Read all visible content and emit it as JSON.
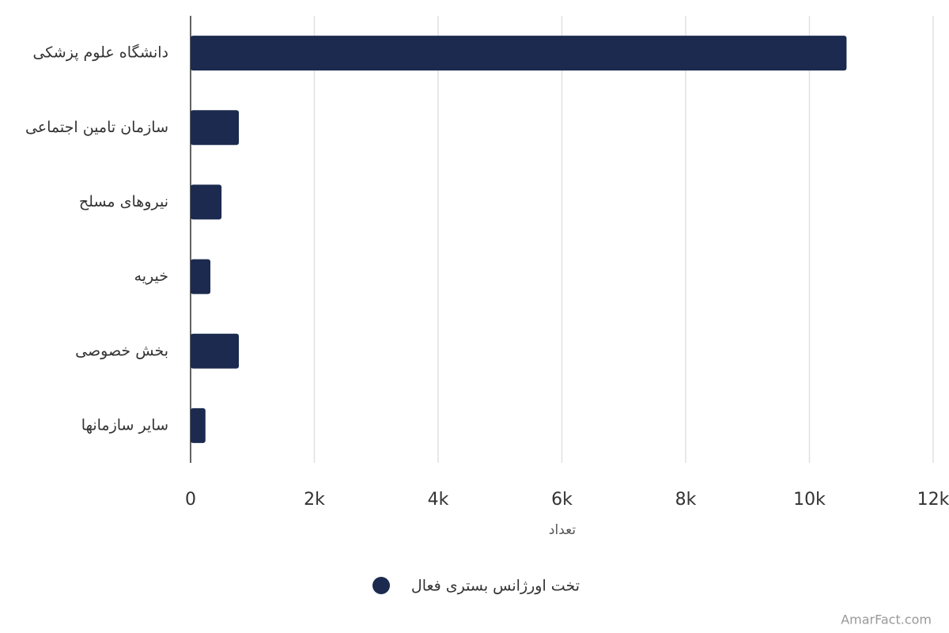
{
  "chart_data": {
    "type": "hbar",
    "categories": [
      "دانشگاه علوم پزشکی",
      "سازمان تامین اجتماعی",
      "نیروهای مسلح",
      "خیریه",
      "بخش خصوصی",
      "سایر سازمانها"
    ],
    "series": [
      {
        "name": "تخت اورژانس بستری فعال",
        "color": "#1b2a4e",
        "values": [
          10600,
          780,
          500,
          320,
          780,
          240
        ]
      }
    ],
    "xlabel": "تعداد",
    "xlim": [
      0,
      12000
    ],
    "xticks": [
      0,
      {
        "value": 2000,
        "label": "2k"
      },
      {
        "value": 4000,
        "label": "4k"
      },
      {
        "value": 6000,
        "label": "6k"
      },
      {
        "value": 8000,
        "label": "8k"
      },
      {
        "value": 10000,
        "label": "10k"
      },
      {
        "value": 12000,
        "label": "12k"
      }
    ],
    "grid": true,
    "credit": "AmarFact.com"
  }
}
